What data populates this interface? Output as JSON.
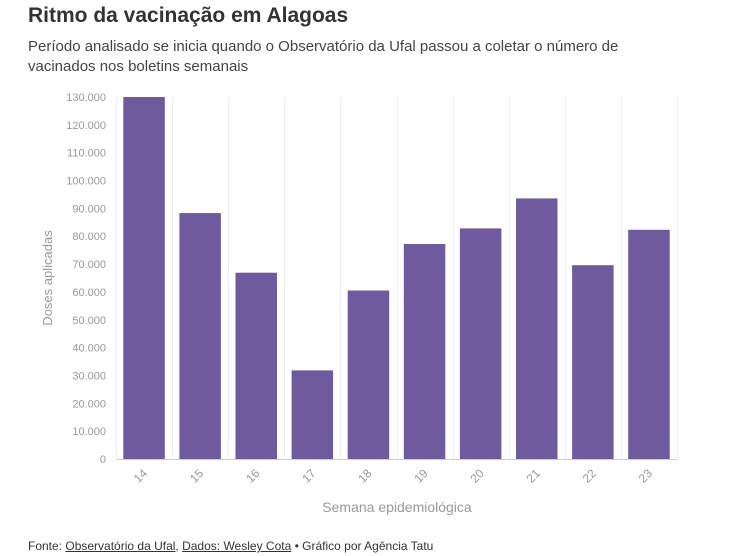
{
  "header": {
    "title": "Ritmo da vacinação em Alagoas",
    "subtitle": "Período analisado se inicia quando o Observatório da Ufal passou a coletar o número de vacinados nos boletins semanais"
  },
  "chart_data": {
    "type": "bar",
    "categories": [
      "14",
      "15",
      "16",
      "17",
      "18",
      "19",
      "20",
      "21",
      "22",
      "23"
    ],
    "series": [
      {
        "values": [
          130000,
          88300,
          66900,
          31800,
          60500,
          77200,
          82800,
          93600,
          69600,
          82300
        ]
      }
    ],
    "xlabel": "Semana epidemiológica",
    "ylabel": "Doses aplicadas",
    "ylim": [
      0,
      130000
    ],
    "yticks": [
      0,
      10000,
      20000,
      30000,
      40000,
      50000,
      60000,
      70000,
      80000,
      90000,
      100000,
      110000,
      120000,
      130000
    ],
    "ytick_labels": [
      "0",
      "10.000",
      "20.000",
      "30.000",
      "40.000",
      "50.000",
      "60.000",
      "70.000",
      "80.000",
      "90.000",
      "100.000",
      "110.000",
      "120.000",
      "130.000"
    ],
    "grid": true,
    "bar_color": "#6e5a9c"
  },
  "footer": {
    "prefix": "Fonte: ",
    "link1": "Observatório da Ufal",
    "sep1": ", ",
    "link2": "Dados: Wesley Cota",
    "suffix": " • Gráfico por Agência Tatu"
  }
}
